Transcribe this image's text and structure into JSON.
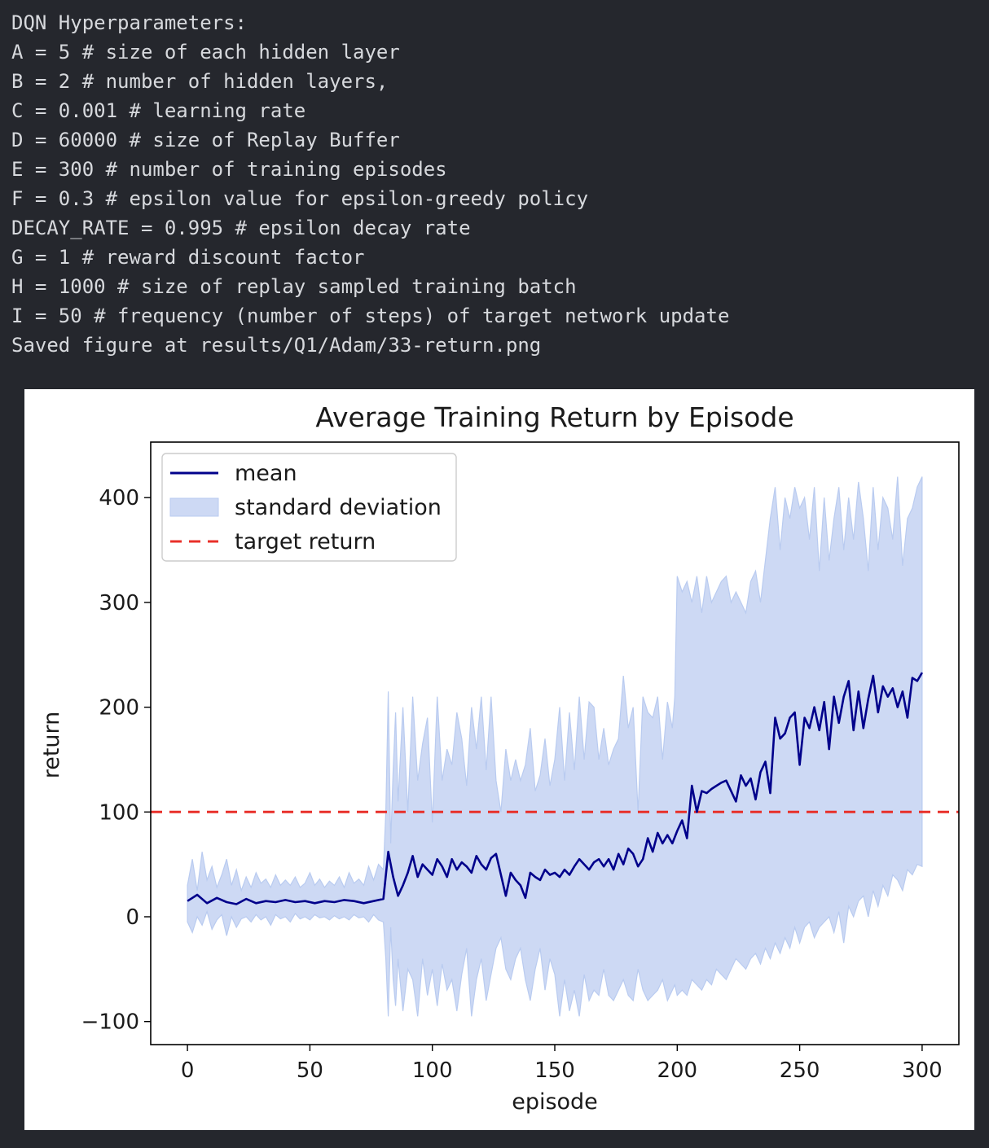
{
  "console": {
    "lines": [
      "DQN Hyperparameters:",
      "A = 5 # size of each hidden layer",
      "B = 2 # number of hidden layers,",
      "C = 0.001 # learning rate",
      "D = 60000 # size of Replay Buffer",
      "E = 300 # number of training episodes",
      "F = 0.3 # epsilon value for epsilon-greedy policy",
      "DECAY_RATE = 0.995 # epsilon decay rate",
      "G = 1 # reward discount factor",
      "H = 1000 # size of replay sampled training batch",
      "I = 50 # frequency (number of steps) of target network update",
      "Saved figure at results/Q1/Adam/33-return.png"
    ]
  },
  "chart_data": {
    "type": "line",
    "title": "Average Training Return by Episode",
    "xlabel": "episode",
    "ylabel": "return",
    "xlim": [
      -15,
      315
    ],
    "ylim": [
      -122,
      453
    ],
    "xticks": [
      0,
      50,
      100,
      150,
      200,
      250,
      300
    ],
    "yticks": [
      -100,
      0,
      100,
      200,
      300,
      400
    ],
    "ytick_labels": [
      "−100",
      "0",
      "100",
      "200",
      "300",
      "400"
    ],
    "grid": false,
    "legend_position": "upper-left",
    "legend": [
      {
        "label": "mean",
        "kind": "line",
        "color": "#00008b"
      },
      {
        "label": "standard deviation",
        "kind": "fill",
        "color": "#cdd9f4"
      },
      {
        "label": "target return",
        "kind": "dashed",
        "color": "#e8302a"
      }
    ],
    "target_return": 100,
    "mean_color": "#00008b",
    "std_color": "#cdd9f4",
    "target_color": "#e8302a",
    "series": [
      {
        "name": "mean",
        "x": [
          0,
          4,
          8,
          12,
          16,
          20,
          24,
          28,
          32,
          36,
          40,
          44,
          48,
          52,
          56,
          60,
          64,
          68,
          72,
          76,
          80,
          82,
          84,
          86,
          88,
          90,
          92,
          94,
          96,
          98,
          100,
          102,
          104,
          106,
          108,
          110,
          112,
          114,
          116,
          118,
          120,
          122,
          124,
          126,
          128,
          130,
          132,
          134,
          136,
          138,
          140,
          142,
          144,
          146,
          148,
          150,
          152,
          154,
          156,
          158,
          160,
          162,
          164,
          166,
          168,
          170,
          172,
          174,
          176,
          178,
          180,
          182,
          184,
          186,
          188,
          190,
          192,
          194,
          196,
          198,
          200,
          202,
          204,
          206,
          208,
          210,
          212,
          214,
          216,
          218,
          220,
          222,
          224,
          226,
          228,
          230,
          232,
          234,
          236,
          238,
          240,
          242,
          244,
          246,
          248,
          250,
          252,
          254,
          256,
          258,
          260,
          262,
          264,
          266,
          268,
          270,
          272,
          274,
          276,
          278,
          280,
          282,
          284,
          286,
          288,
          290,
          292,
          294,
          296,
          298,
          300
        ],
        "values": [
          15,
          21,
          13,
          18,
          14,
          12,
          17,
          13,
          15,
          14,
          16,
          14,
          15,
          13,
          15,
          14,
          16,
          15,
          13,
          15,
          17,
          62,
          38,
          20,
          30,
          42,
          58,
          38,
          50,
          45,
          40,
          55,
          48,
          38,
          55,
          45,
          52,
          48,
          42,
          58,
          50,
          45,
          56,
          60,
          40,
          20,
          42,
          35,
          30,
          18,
          42,
          38,
          35,
          45,
          40,
          42,
          38,
          45,
          40,
          48,
          55,
          50,
          45,
          52,
          55,
          48,
          55,
          45,
          60,
          50,
          65,
          60,
          48,
          55,
          75,
          62,
          80,
          70,
          78,
          70,
          82,
          92,
          75,
          125,
          100,
          120,
          118,
          122,
          125,
          128,
          130,
          120,
          110,
          135,
          125,
          132,
          112,
          138,
          148,
          118,
          190,
          170,
          175,
          190,
          195,
          145,
          190,
          180,
          200,
          178,
          205,
          160,
          210,
          185,
          210,
          225,
          178,
          215,
          180,
          208,
          230,
          195,
          220,
          210,
          218,
          200,
          215,
          190,
          228,
          225,
          233
        ]
      },
      {
        "name": "upper",
        "x": [
          0,
          2,
          4,
          6,
          8,
          10,
          12,
          14,
          16,
          18,
          20,
          22,
          24,
          26,
          28,
          30,
          32,
          34,
          36,
          38,
          40,
          42,
          44,
          46,
          48,
          50,
          52,
          54,
          56,
          58,
          60,
          62,
          64,
          66,
          68,
          70,
          72,
          74,
          76,
          78,
          80,
          81,
          82,
          83,
          84,
          85,
          86,
          88,
          90,
          92,
          94,
          96,
          98,
          100,
          102,
          104,
          106,
          108,
          110,
          112,
          114,
          116,
          118,
          120,
          122,
          124,
          126,
          128,
          130,
          132,
          134,
          136,
          138,
          140,
          142,
          144,
          146,
          148,
          150,
          152,
          154,
          156,
          158,
          160,
          162,
          164,
          166,
          168,
          170,
          172,
          174,
          176,
          178,
          180,
          182,
          184,
          186,
          188,
          190,
          192,
          194,
          196,
          198,
          199,
          200,
          202,
          204,
          206,
          208,
          210,
          212,
          214,
          216,
          218,
          220,
          222,
          224,
          226,
          228,
          230,
          232,
          234,
          236,
          238,
          240,
          242,
          244,
          246,
          248,
          250,
          252,
          254,
          256,
          258,
          260,
          262,
          264,
          266,
          268,
          270,
          272,
          274,
          276,
          278,
          280,
          282,
          284,
          286,
          288,
          290,
          292,
          294,
          296,
          298,
          300
        ],
        "values": [
          30,
          55,
          25,
          62,
          35,
          48,
          28,
          40,
          55,
          30,
          45,
          25,
          38,
          28,
          42,
          32,
          36,
          28,
          40,
          30,
          35,
          30,
          38,
          28,
          32,
          42,
          30,
          36,
          28,
          34,
          30,
          38,
          28,
          42,
          32,
          36,
          30,
          48,
          35,
          50,
          45,
          100,
          215,
          70,
          140,
          195,
          110,
          200,
          100,
          210,
          130,
          165,
          190,
          90,
          210,
          130,
          160,
          145,
          195,
          170,
          125,
          200,
          160,
          210,
          140,
          210,
          130,
          100,
          160,
          130,
          150,
          130,
          145,
          180,
          120,
          135,
          170,
          125,
          150,
          200,
          130,
          195,
          140,
          210,
          150,
          205,
          200,
          150,
          180,
          145,
          160,
          170,
          230,
          180,
          200,
          100,
          210,
          195,
          190,
          210,
          150,
          205,
          180,
          210,
          325,
          310,
          320,
          300,
          325,
          290,
          325,
          300,
          310,
          320,
          325,
          300,
          310,
          300,
          290,
          320,
          330,
          300,
          340,
          380,
          410,
          350,
          400,
          380,
          410,
          390,
          400,
          360,
          410,
          330,
          400,
          340,
          380,
          410,
          350,
          400,
          360,
          415,
          380,
          330,
          410,
          350,
          400,
          390,
          360,
          420,
          335,
          380,
          390,
          410,
          420
        ]
      },
      {
        "name": "lower",
        "x": [
          0,
          2,
          4,
          6,
          8,
          10,
          12,
          14,
          16,
          18,
          20,
          22,
          24,
          26,
          28,
          30,
          32,
          34,
          36,
          38,
          40,
          42,
          44,
          46,
          48,
          50,
          52,
          54,
          56,
          58,
          60,
          62,
          64,
          66,
          68,
          70,
          72,
          74,
          76,
          78,
          80,
          81,
          82,
          83,
          84,
          85,
          86,
          88,
          90,
          92,
          94,
          96,
          98,
          100,
          102,
          104,
          106,
          108,
          110,
          112,
          114,
          116,
          118,
          120,
          122,
          124,
          126,
          128,
          130,
          132,
          134,
          136,
          138,
          140,
          142,
          144,
          146,
          148,
          150,
          152,
          154,
          156,
          158,
          160,
          162,
          164,
          166,
          168,
          170,
          172,
          174,
          176,
          178,
          180,
          182,
          184,
          186,
          188,
          190,
          192,
          194,
          196,
          198,
          199,
          200,
          202,
          204,
          206,
          208,
          210,
          212,
          214,
          216,
          218,
          220,
          222,
          224,
          226,
          228,
          230,
          232,
          234,
          236,
          238,
          240,
          242,
          244,
          246,
          248,
          250,
          252,
          254,
          256,
          258,
          260,
          262,
          264,
          266,
          268,
          270,
          272,
          274,
          276,
          278,
          280,
          282,
          284,
          286,
          288,
          290,
          292,
          294,
          296,
          298,
          300
        ],
        "values": [
          -5,
          -15,
          0,
          -8,
          5,
          -12,
          -3,
          2,
          -18,
          0,
          -10,
          -2,
          0,
          -5,
          2,
          -3,
          0,
          -8,
          2,
          -2,
          0,
          -5,
          3,
          -2,
          0,
          -3,
          2,
          -1,
          0,
          -3,
          1,
          -2,
          0,
          -3,
          2,
          -1,
          0,
          -5,
          2,
          -3,
          -5,
          -40,
          -95,
          -10,
          -60,
          -85,
          -40,
          -90,
          -50,
          -60,
          -95,
          -40,
          -75,
          -50,
          -85,
          -45,
          -70,
          -60,
          -90,
          -55,
          -30,
          -95,
          -60,
          -40,
          -80,
          -55,
          -30,
          -20,
          -50,
          -60,
          -40,
          -30,
          -60,
          -80,
          -50,
          -30,
          -70,
          -40,
          -55,
          -95,
          -60,
          -90,
          -70,
          -95,
          -55,
          -80,
          -70,
          -75,
          -50,
          -75,
          -80,
          -70,
          -60,
          -75,
          -80,
          -50,
          -70,
          -80,
          -75,
          -70,
          -60,
          -80,
          -70,
          -65,
          -75,
          -70,
          -75,
          -60,
          -65,
          -70,
          -60,
          -65,
          -50,
          -55,
          -60,
          -50,
          -40,
          -45,
          -50,
          -40,
          -35,
          -45,
          -30,
          -40,
          -25,
          -35,
          -20,
          -30,
          -10,
          -25,
          -10,
          -5,
          -20,
          -10,
          -5,
          0,
          -15,
          5,
          -25,
          10,
          0,
          15,
          20,
          0,
          25,
          10,
          30,
          20,
          40,
          35,
          25,
          45,
          40,
          50,
          48
        ]
      }
    ]
  }
}
